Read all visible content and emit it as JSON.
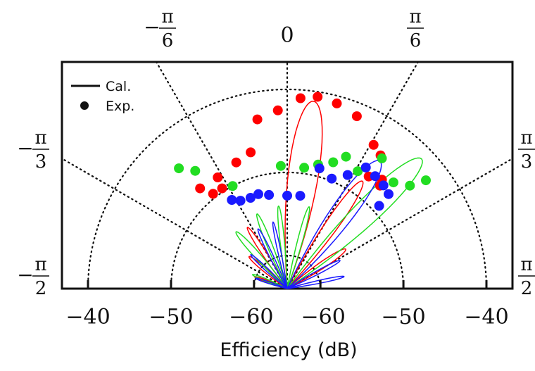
{
  "chart_data": {
    "type": "scatter",
    "subtype": "polar-half",
    "xlabel": "Efficiency (dB)",
    "radial_ticks": [
      "−40",
      "−50",
      "−60",
      "−60",
      "−50",
      "−40"
    ],
    "radial_range_db": [
      -64,
      -40
    ],
    "angular_ticks": [
      {
        "num": "− π",
        "den": "6",
        "angle_deg": -30
      },
      {
        "num": "0",
        "den": "",
        "angle_deg": 0
      },
      {
        "num": "π",
        "den": "6",
        "angle_deg": 30
      },
      {
        "num": "− π",
        "den": "3",
        "angle_deg": -60
      },
      {
        "num": "π",
        "den": "3",
        "angle_deg": 60
      },
      {
        "num": "− π",
        "den": "2",
        "angle_deg": -90
      },
      {
        "num": "π",
        "den": "2",
        "angle_deg": 90
      }
    ],
    "legend": {
      "position": "top-left",
      "entries": [
        {
          "label": "Cal.",
          "marker": "line"
        },
        {
          "label": "Exp.",
          "marker": "dot"
        }
      ]
    },
    "colors": {
      "red": "#ff0000",
      "green": "#22dd22",
      "blue": "#1a1aff",
      "axes": "#111111"
    },
    "series": [
      {
        "color": "red",
        "points": [
          {
            "theta": -41,
            "r": -48.0
          },
          {
            "theta": -38,
            "r": -49.5
          },
          {
            "theta": -33,
            "r": -49.6
          },
          {
            "theta": -32,
            "r": -48.2
          },
          {
            "theta": -22,
            "r": -47.6
          },
          {
            "theta": -15,
            "r": -47.0
          },
          {
            "theta": -10,
            "r": -43.3
          },
          {
            "theta": -3,
            "r": -42.5
          },
          {
            "theta": 4,
            "r": -41.0
          },
          {
            "theta": 9,
            "r": -40.6
          },
          {
            "theta": 15,
            "r": -40.9
          },
          {
            "theta": 22,
            "r": -41.6
          },
          {
            "theta": 31,
            "r": -43.8
          },
          {
            "theta": 35,
            "r": -44.4
          },
          {
            "theta": 36,
            "r": -47.3
          },
          {
            "theta": 41,
            "r": -46.6
          },
          {
            "theta": 42,
            "r": -47.3
          }
        ],
        "lobes": [
          {
            "center": 8,
            "width": 24,
            "length": -41.2
          },
          {
            "center": 35,
            "width": 15,
            "length": -48.2
          },
          {
            "center": 56,
            "width": 14,
            "length": -55.5
          },
          {
            "center": -33,
            "width": 10,
            "length": -55.2
          },
          {
            "center": -50,
            "width": 12,
            "length": -58.0
          },
          {
            "center": -70,
            "width": 9,
            "length": -59.8
          }
        ]
      },
      {
        "color": "green",
        "points": [
          {
            "theta": -42,
            "r": -44.5
          },
          {
            "theta": -38,
            "r": -46.0
          },
          {
            "theta": -28,
            "r": -50.0
          },
          {
            "theta": -3,
            "r": -49.2
          },
          {
            "theta": 8,
            "r": -49.3
          },
          {
            "theta": 14,
            "r": -48.6
          },
          {
            "theta": 20,
            "r": -47.8
          },
          {
            "theta": 24,
            "r": -46.6
          },
          {
            "theta": 31,
            "r": -47.5
          },
          {
            "theta": 36,
            "r": -44.6
          },
          {
            "theta": 45,
            "r": -45.9
          },
          {
            "theta": 50,
            "r": -44.7
          },
          {
            "theta": 52,
            "r": -42.8
          }
        ],
        "lobes": [
          {
            "center": 46,
            "width": 20,
            "length": -41.5
          },
          {
            "center": -22,
            "width": 10,
            "length": -54.3
          },
          {
            "center": -42,
            "width": 12,
            "length": -54.8
          },
          {
            "center": 15,
            "width": 9,
            "length": -53.8
          },
          {
            "center": -6,
            "width": 8,
            "length": -54.0
          },
          {
            "center": -68,
            "width": 10,
            "length": -59.5
          }
        ]
      },
      {
        "color": "blue",
        "points": [
          {
            "theta": -32,
            "r": -51.4
          },
          {
            "theta": -28,
            "r": -52.0
          },
          {
            "theta": -22,
            "r": -52.2
          },
          {
            "theta": -17,
            "r": -52.1
          },
          {
            "theta": -11,
            "r": -52.5
          },
          {
            "theta": 0,
            "r": -52.8
          },
          {
            "theta": 8,
            "r": -52.7
          },
          {
            "theta": 15,
            "r": -49.0
          },
          {
            "theta": 22,
            "r": -49.7
          },
          {
            "theta": 28,
            "r": -48.5
          },
          {
            "theta": 33,
            "r": -46.6
          },
          {
            "theta": 38,
            "r": -46.8
          },
          {
            "theta": 43,
            "r": -47.0
          },
          {
            "theta": 47,
            "r": -47.3
          },
          {
            "theta": 48,
            "r": -49.1
          }
        ],
        "lobes": [
          {
            "center": 36,
            "width": 22,
            "length": -45.0
          },
          {
            "center": -26,
            "width": 9,
            "length": -56.0
          },
          {
            "center": -47,
            "width": 9,
            "length": -58.0
          },
          {
            "center": 62,
            "width": 9,
            "length": -56.8
          },
          {
            "center": -12,
            "width": 7,
            "length": -55.8
          },
          {
            "center": -72,
            "width": 8,
            "length": -60.0
          },
          {
            "center": 78,
            "width": 8,
            "length": -57.0
          }
        ]
      }
    ]
  }
}
